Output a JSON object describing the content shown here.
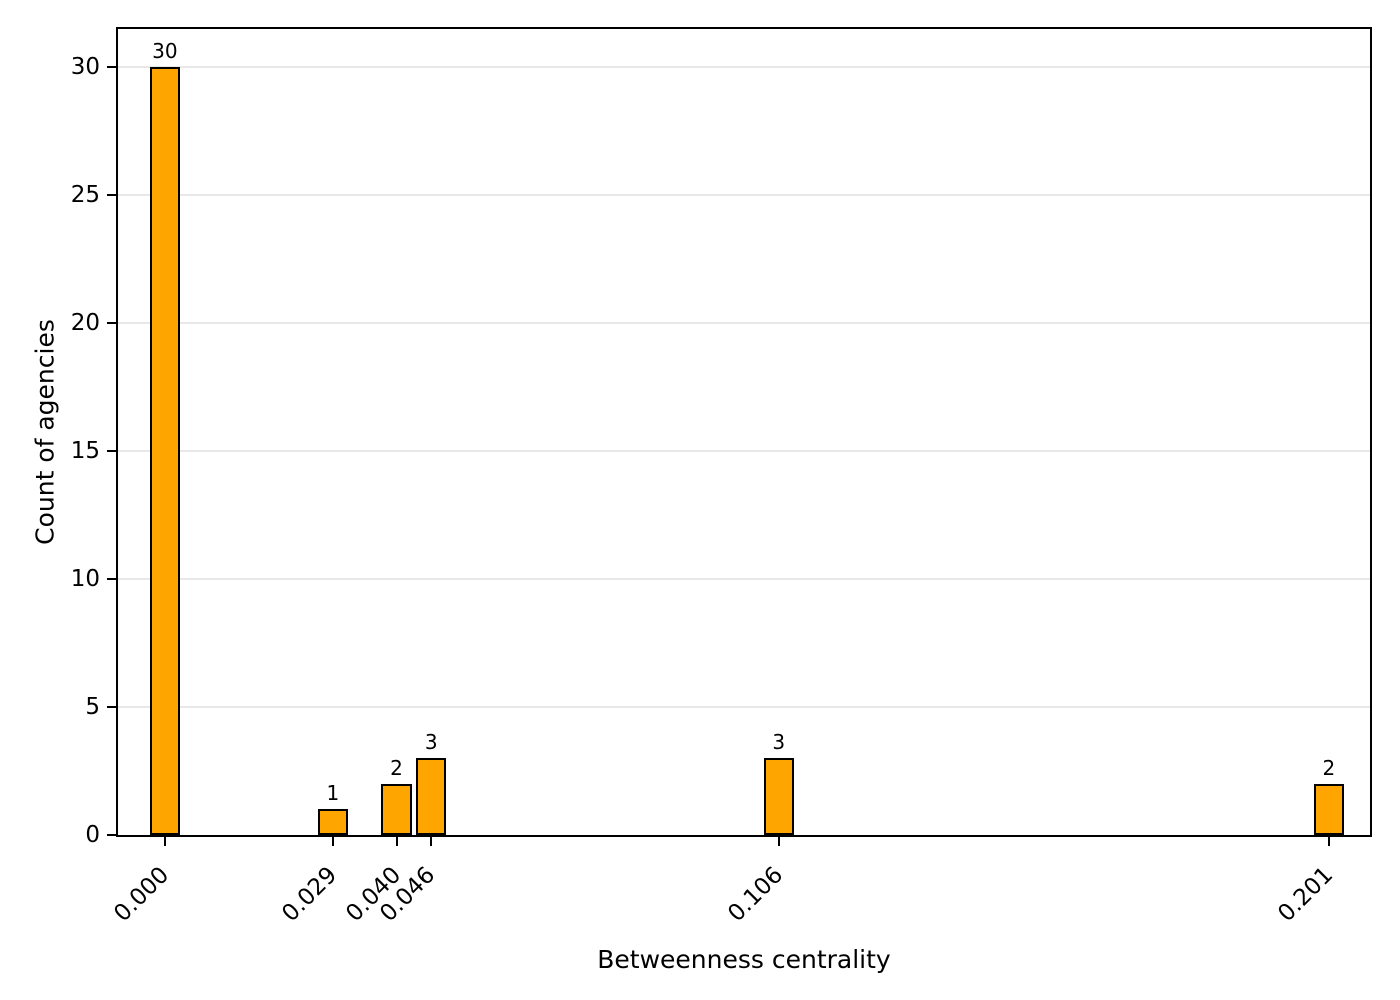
{
  "figure": {
    "background": "#ffffff"
  },
  "chart_data": {
    "type": "bar",
    "title": "",
    "xlabel": "Betweenness centrality",
    "ylabel": "Count of agencies",
    "x": [
      0.0,
      0.029,
      0.04,
      0.046,
      0.106,
      0.201
    ],
    "values": [
      30,
      1,
      2,
      3,
      3,
      2
    ],
    "bar_labels": [
      "30",
      "1",
      "2",
      "3",
      "3",
      "2"
    ],
    "x_tick_labels": [
      "0.000",
      "0.029",
      "0.040",
      "0.046",
      "0.106",
      "0.201"
    ],
    "y_ticks": [
      0,
      5,
      10,
      15,
      20,
      25,
      30
    ],
    "y_tick_labels": [
      "0",
      "5",
      "10",
      "15",
      "20",
      "25",
      "30"
    ],
    "xlim": [
      -0.0081,
      0.2081
    ],
    "ylim": [
      0,
      31.5
    ],
    "bar_width_data": 0.0052,
    "bar_color": "#FFA500",
    "bar_edge_color": "#000000",
    "grid": "horizontal-only",
    "grid_color": "#e8e8e8",
    "axis_color": "#000000",
    "legend": "none"
  }
}
